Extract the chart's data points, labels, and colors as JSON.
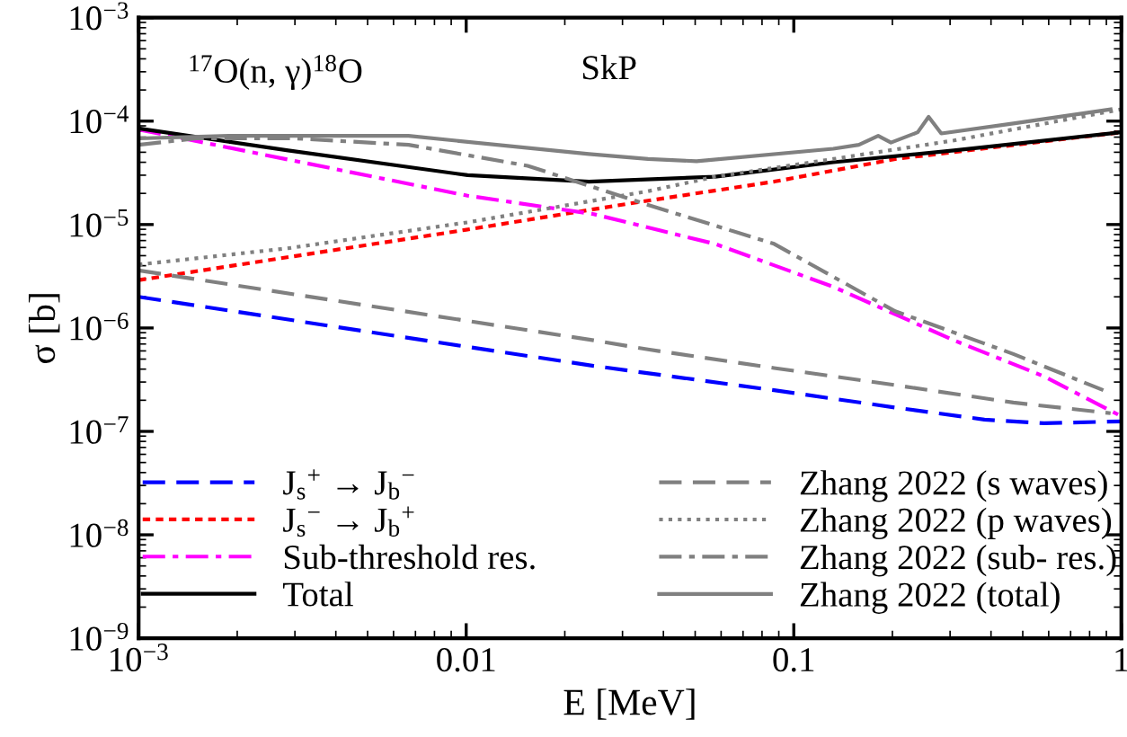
{
  "chart_data": {
    "type": "line",
    "xlabel": "E [MeV]",
    "ylabel": "σ [b]",
    "annotations": [
      "$^{17}$O(n, γ)$^{18}$O",
      "SkP"
    ],
    "log": "xy",
    "grid": false,
    "legend": "bottom",
    "marker": "none",
    "xlim": [
      0.001,
      1
    ],
    "ylim": [
      1e-09,
      0.001
    ],
    "xticks": [
      {
        "value": 0.001,
        "label": "10$^{−3}$"
      },
      0.01,
      0.1,
      1
    ],
    "yticks": [
      {
        "value": 1e-09,
        "label": "10$^{−9}$"
      },
      {
        "value": 1e-08,
        "label": "10$^{−8}$"
      },
      {
        "value": 1e-07,
        "label": "10$^{−7}$"
      },
      {
        "value": 1e-06,
        "label": "10$^{−6}$"
      },
      {
        "value": 1e-05,
        "label": "10$^{−5}$"
      },
      {
        "value": 0.0001,
        "label": "10$^{−4}$"
      },
      {
        "value": 0.001,
        "label": "10$^{−3}$"
      }
    ],
    "series": [
      {
        "name": "J$_{s}$$^{+}$ → J$_{b}$$^{−}$",
        "color": "#0000ff",
        "line_style": "dashed",
        "x": [
          0.001,
          0.01,
          0.0245,
          0.0871,
          0.204,
          0.382,
          0.581,
          1
        ],
        "values": [
          2e-06,
          6.6e-07,
          4.3e-07,
          2.5e-07,
          1.7e-07,
          1.3e-07,
          1.2e-07,
          1.25e-07
        ]
      },
      {
        "name": "J$_{s}$$^{−}$ → J$_{b}$$^{+}$",
        "color": "#ff0000",
        "line_style": "dotted",
        "x": [
          0.001,
          0.01,
          0.0316,
          0.0871,
          0.204,
          1
        ],
        "values": [
          2.9e-06,
          8.9e-06,
          1.6e-05,
          2.6e-05,
          4.3e-05,
          7.8e-05
        ]
      },
      {
        "name": "Sub-threshold res.",
        "color": "#ff00ff",
        "line_style": "dashdot",
        "x": [
          0.001,
          0.0101,
          0.0245,
          0.0575,
          0.132,
          0.308,
          0.581,
          1
        ],
        "values": [
          8.3e-05,
          1.9e-05,
          1.26e-05,
          6.5e-06,
          2.5e-06,
          7.6e-07,
          3.4e-07,
          1.4e-07
        ]
      },
      {
        "name": "Total",
        "color": "#000000",
        "line_style": "solid",
        "x": [
          0.001,
          0.00286,
          0.0101,
          0.0237,
          0.0575,
          0.132,
          0.308,
          1
        ],
        "values": [
          8.5e-05,
          5.2e-05,
          3e-05,
          2.6e-05,
          2.9e-05,
          4e-05,
          5.2e-05,
          7.8e-05
        ]
      },
      {
        "name": "Zhang 2022 (s waves)",
        "color": "#808080",
        "line_style": "dashed",
        "x": [
          0.001,
          0.0245,
          0.0359,
          0.0871,
          0.204,
          0.468,
          0.927
        ],
        "values": [
          3.6e-06,
          7.6e-07,
          6.2e-07,
          4.1e-07,
          2.8e-07,
          1.9e-07,
          1.5e-07
        ]
      },
      {
        "name": "Zhang 2022 (p waves)",
        "color": "#808080",
        "line_style": "dotted",
        "x": [
          0.001,
          0.00286,
          0.0101,
          0.0359,
          0.0575,
          0.132,
          0.308,
          1
        ],
        "values": [
          4.1e-06,
          5.9e-06,
          1.05e-05,
          2.1e-05,
          2.9e-05,
          4.3e-05,
          6.5e-05,
          0.00013
        ]
      },
      {
        "name": "Zhang 2022 (sub- res.)",
        "color": "#808080",
        "line_style": "dashdot",
        "x": [
          0.001,
          0.0015,
          0.003,
          0.00667,
          0.0154,
          0.0359,
          0.0871,
          0.204,
          0.468,
          0.881
        ],
        "values": [
          5.9e-05,
          6.8e-05,
          6.8e-05,
          5.9e-05,
          3.7e-05,
          1.55e-05,
          6.5e-06,
          1.45e-06,
          5.6e-07,
          2.5e-07
        ]
      },
      {
        "name": "Zhang 2022 (total)",
        "color": "#808080",
        "line_style": "solid",
        "x": [
          0.001,
          0.00188,
          0.00667,
          0.0237,
          0.0359,
          0.0505,
          0.132,
          0.158,
          0.181,
          0.198,
          0.239,
          0.258,
          0.282,
          0.468,
          0.927
        ],
        "values": [
          6.8e-05,
          7.2e-05,
          7.2e-05,
          4.8e-05,
          4.3e-05,
          4.1e-05,
          5.4e-05,
          5.9e-05,
          7.2e-05,
          6.2e-05,
          7.8e-05,
          0.00011,
          7.6e-05,
          9.5e-05,
          0.00013
        ]
      }
    ]
  }
}
